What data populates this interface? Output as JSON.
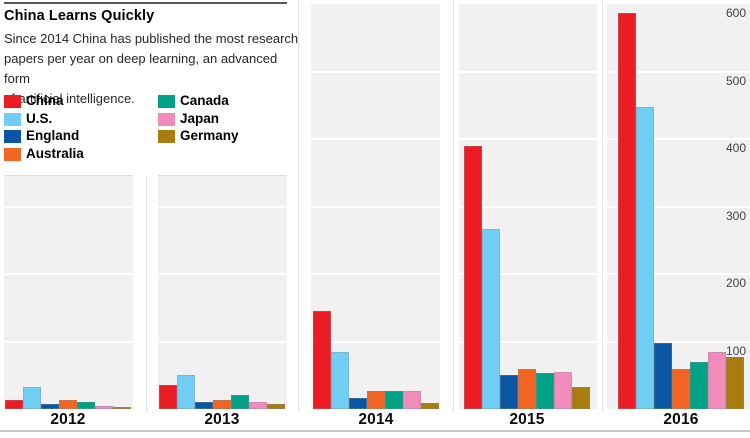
{
  "header": {
    "title": "China Learns Quickly",
    "subtitle_lines": [
      "Since 2014 China has published the most research",
      "papers per year on deep learning, an advanced form",
      "of artificial intelligence."
    ]
  },
  "colors": {
    "china": "#EC1C24",
    "us": "#70CDF4",
    "england": "#0A56A4",
    "australia": "#F26522",
    "canada": "#00A285",
    "japan": "#F18BBB",
    "germany": "#A97C10",
    "panel_background": "#F0F1F0",
    "title_rule": "#595959",
    "bottom_rule": "#C6CBCA"
  },
  "chart_data": {
    "type": "bar",
    "title": "China Learns Quickly",
    "subtitle": "Since 2014 China has published the most research papers per year on deep learning, an advanced form of artificial intelligence.",
    "categories": [
      "2012",
      "2013",
      "2014",
      "2015",
      "2016"
    ],
    "series": [
      {
        "name": "China",
        "color": "#EC1C24",
        "values": [
          14,
          36,
          145,
          390,
          587
        ]
      },
      {
        "name": "U.S.",
        "color": "#70CDF4",
        "values": [
          32,
          51,
          84,
          267,
          447
        ]
      },
      {
        "name": "England",
        "color": "#0A56A4",
        "values": [
          8,
          10,
          17,
          51,
          98
        ]
      },
      {
        "name": "Australia",
        "color": "#F26522",
        "values": [
          14,
          14,
          27,
          60,
          60
        ]
      },
      {
        "name": "Canada",
        "color": "#00A285",
        "values": [
          11,
          21,
          26,
          53,
          69
        ]
      },
      {
        "name": "Japan",
        "color": "#F18BBB",
        "values": [
          4,
          11,
          26,
          55,
          85
        ]
      },
      {
        "name": "Germany",
        "color": "#A97C10",
        "values": [
          3,
          8,
          9,
          32,
          77
        ]
      }
    ],
    "xlabel": "",
    "ylabel": "",
    "ylim": [
      0,
      600
    ],
    "yticks": [
      100,
      200,
      300,
      400,
      500,
      600
    ],
    "grid": true,
    "legend_position": "top-left",
    "legend_columns": [
      [
        "China",
        "U.S.",
        "England",
        "Australia"
      ],
      [
        "Canada",
        "Japan",
        "Germany"
      ]
    ]
  }
}
